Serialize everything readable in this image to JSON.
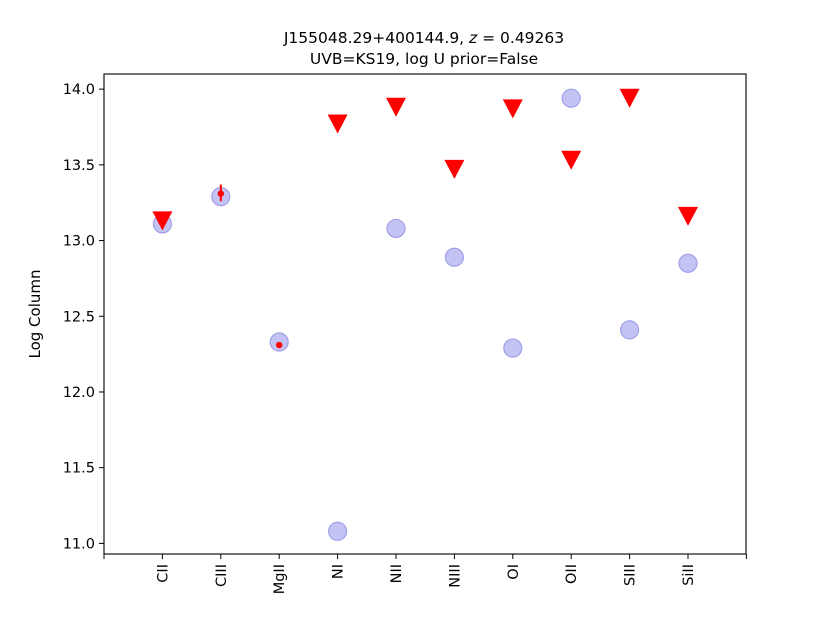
{
  "chart_data": {
    "type": "scatter",
    "title_main": "J155048.29+400144.9, ",
    "title_z_symbol": "z",
    "title_z_value": " = 0.49263",
    "subtitle": "UVB=KS19, log U prior=False",
    "xlabel": "",
    "ylabel": "Log Column",
    "categories": [
      "CII",
      "CIII",
      "MgII",
      "NI",
      "NII",
      "NIII",
      "OI",
      "OII",
      "SIII",
      "SiII"
    ],
    "ylim": [
      10.93,
      14.1
    ],
    "yticks": [
      "11.0",
      "11.5",
      "12.0",
      "12.5",
      "13.0",
      "13.5",
      "14.0"
    ],
    "grid": false,
    "colors": {
      "model_point": "#b9b9f2",
      "model_edge": "#a0a0e8",
      "observed": "#ff0000"
    },
    "series": [
      {
        "marker": "circle",
        "points": [
          {
            "category": "CII",
            "y": 13.11
          },
          {
            "category": "CIII",
            "y": 13.29
          },
          {
            "category": "MgII",
            "y": 12.33
          },
          {
            "category": "NI",
            "y": 11.08
          },
          {
            "category": "NII",
            "y": 13.08
          },
          {
            "category": "NIII",
            "y": 12.89
          },
          {
            "category": "OI",
            "y": 12.29
          },
          {
            "category": "OII",
            "y": 13.94
          },
          {
            "category": "SIII",
            "y": 12.41
          },
          {
            "category": "SiII",
            "y": 12.85
          }
        ]
      },
      {
        "marker": "triangle-down",
        "points": [
          {
            "category": "CII",
            "y": 13.13
          },
          {
            "category": "NI",
            "y": 13.77
          },
          {
            "category": "NII",
            "y": 13.88
          },
          {
            "category": "NIII",
            "y": 13.47
          },
          {
            "category": "OI",
            "y": 13.87
          },
          {
            "category": "OII",
            "y": 13.53
          },
          {
            "category": "SIII",
            "y": 13.94
          },
          {
            "category": "SiII",
            "y": 13.16
          }
        ]
      },
      {
        "marker": "point-errorbar",
        "points": [
          {
            "category": "CIII",
            "y": 13.31,
            "err_low": 0.05,
            "err_high": 0.06
          },
          {
            "category": "MgII",
            "y": 12.31,
            "err_low": 0.01,
            "err_high": 0.01
          }
        ]
      }
    ]
  }
}
